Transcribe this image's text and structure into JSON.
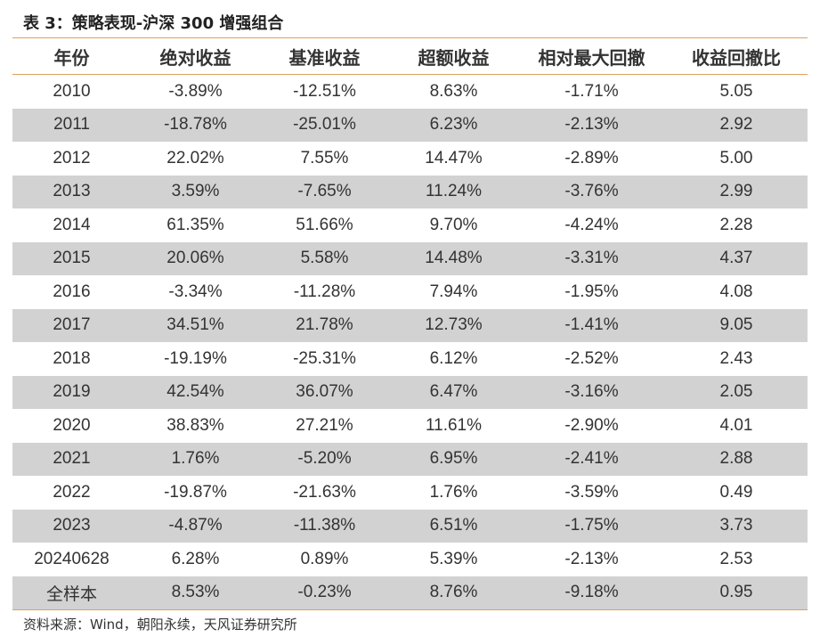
{
  "title": "表 3：策略表现-沪深 300 增强组合",
  "table": {
    "headers": [
      "年份",
      "绝对收益",
      "基准收益",
      "超额收益",
      "相对最大回撤",
      "收益回撤比"
    ],
    "rows": [
      [
        "2010",
        "-3.89%",
        "-12.51%",
        "8.63%",
        "-1.71%",
        "5.05"
      ],
      [
        "2011",
        "-18.78%",
        "-25.01%",
        "6.23%",
        "-2.13%",
        "2.92"
      ],
      [
        "2012",
        "22.02%",
        "7.55%",
        "14.47%",
        "-2.89%",
        "5.00"
      ],
      [
        "2013",
        "3.59%",
        "-7.65%",
        "11.24%",
        "-3.76%",
        "2.99"
      ],
      [
        "2014",
        "61.35%",
        "51.66%",
        "9.70%",
        "-4.24%",
        "2.28"
      ],
      [
        "2015",
        "20.06%",
        "5.58%",
        "14.48%",
        "-3.31%",
        "4.37"
      ],
      [
        "2016",
        "-3.34%",
        "-11.28%",
        "7.94%",
        "-1.95%",
        "4.08"
      ],
      [
        "2017",
        "34.51%",
        "21.78%",
        "12.73%",
        "-1.41%",
        "9.05"
      ],
      [
        "2018",
        "-19.19%",
        "-25.31%",
        "6.12%",
        "-2.52%",
        "2.43"
      ],
      [
        "2019",
        "42.54%",
        "36.07%",
        "6.47%",
        "-3.16%",
        "2.05"
      ],
      [
        "2020",
        "38.83%",
        "27.21%",
        "11.61%",
        "-2.90%",
        "4.01"
      ],
      [
        "2021",
        "1.76%",
        "-5.20%",
        "6.95%",
        "-2.41%",
        "2.88"
      ],
      [
        "2022",
        "-19.87%",
        "-21.63%",
        "1.76%",
        "-3.59%",
        "0.49"
      ],
      [
        "2023",
        "-4.87%",
        "-11.38%",
        "6.51%",
        "-1.75%",
        "3.73"
      ],
      [
        "20240628",
        "6.28%",
        "0.89%",
        "5.39%",
        "-2.13%",
        "2.53"
      ],
      [
        "全样本",
        "8.53%",
        "-0.23%",
        "8.76%",
        "-9.18%",
        "0.95"
      ]
    ]
  },
  "source": "资料来源：Wind，朝阳永续，天风证券研究所",
  "colors": {
    "rule": "#e0a05a",
    "stripe": "#d2d2d2"
  }
}
